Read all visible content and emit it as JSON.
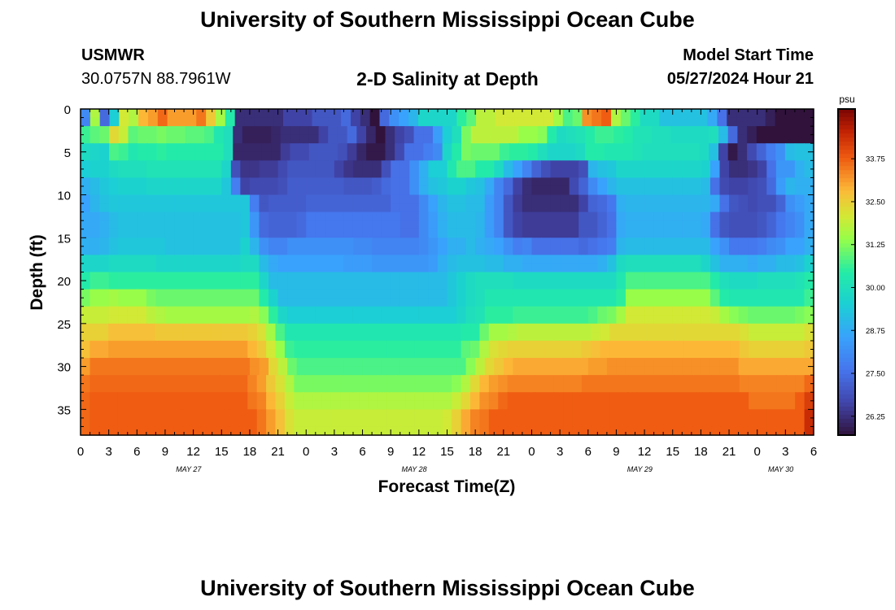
{
  "header": {
    "title": "University of Southern Mississippi Ocean Cube",
    "station_name": "USMWR",
    "station_coords": "30.0757N  88.7961W",
    "subtitle": "2-D Salinity at Depth",
    "model_start_label": "Model Start Time",
    "model_start_value": "05/27/2024 Hour 21"
  },
  "footer": {
    "title": "University of Southern Mississippi Ocean Cube"
  },
  "chart_data": {
    "type": "heatmap",
    "title": "2-D Salinity at Depth",
    "xlabel": "Forecast Time(Z)",
    "ylabel": "Depth (ft)",
    "x_range_hours": [
      0,
      78
    ],
    "y_range_ft": [
      0,
      38
    ],
    "x_tick_labels": [
      "0",
      "3",
      "6",
      "9",
      "12",
      "15",
      "18",
      "21",
      "0",
      "3",
      "6",
      "9",
      "12",
      "15",
      "18",
      "21",
      "0",
      "3",
      "6",
      "9",
      "12",
      "15",
      "18",
      "21",
      "0",
      "3",
      "6"
    ],
    "y_tick_values": [
      0,
      5,
      10,
      15,
      20,
      25,
      30,
      35
    ],
    "day_labels": [
      {
        "label": "MAY 27",
        "hour": 11.5
      },
      {
        "label": "MAY 28",
        "hour": 35.5
      },
      {
        "label": "MAY 29",
        "hour": 59.5
      },
      {
        "label": "MAY 30",
        "hour": 74.5
      }
    ],
    "colorbar": {
      "unit": "psu",
      "range": [
        25.7,
        35.2
      ],
      "tick_values": [
        26.25,
        27.5,
        28.75,
        30.0,
        31.25,
        32.5,
        33.75
      ],
      "tick_labels": [
        "26.25",
        "27.50",
        "28.75",
        "30.00",
        "31.25",
        "32.50",
        "33.75"
      ]
    },
    "grid_shape": {
      "cols": 78,
      "rows": 38
    },
    "cell_unit": "1 hour x 1 ft",
    "salinity_psu": [
      "3O.>ROXZ^ZZZ]VNE%%%%%(((+++.(%!.47:@@@@FIPPRRRRRRNHJ[]_OJFAA<<<<<8/%%%%#!!!!",
      "2N.>ROXZ^ZZZ]VNE%%%%%(((+++.(%!.47:@@@@FIPPRRRRRRNHJ[]_OJFAA<<<<<8/%%%%#!!!!",
      "GIJTQIJJKJJIIHDB%###$%%%%(++.($!%(*//6>BKPPPPPMMLEABCEGGFECCBBAAAAB;.%#!!!!!!",
      "GIJTQIJJKJJIIHDB%###$%%%%(++.($!%(*//6>BKPPPPPMMLEABCEGGFECCBBAAAAB;.%#!!!!!!",
      "A@?HGDEEFEEEEEEB$$$$$'))+++*'$\"\"%)//13@EKJJJGFFEB@@@AEEDDDCBBBBBBA<(\"%)-14;<<",
      "A@?HGDEEFEEEEEEB$$$$$'))+++*'$\"\"%)//13@EKJJJGFFEB@@@AEEDDDCBBBBBBA<(\"%)-14;<<",
      ">??ABBBCCCCCCCC@*&&'')+++++(&%%%*//49>>DHHEEA;72-*(((*:<=@@@@@@@@@?7(%%&(/559;",
      ">??ABBBCCCCCCCC@*&&'')+++++(&%%%*//49>>DHHEEA;72-*(((*:<=@@@@@@@@@?7(%%&(/559;",
      "9;=>???@@@@@@@@=1()))*,,,,,,+++,.//49<=??=<82.(%$$$$)-37:<<<<<<<<<;/)(()*.6:99",
      "9;=>???@@@@@@@@=1()))*,,,,,,+++,.//49<=??=<82.(%$$$$)-37:<<<<<<<<<;/)(()*.6:99",
      "7:<===============1+,,,,---------///37:<<;;62+'%%%%%%(-.09:::::::::8/+*)**-468",
      "7:<===============1+,,,,---------///37:<<;;62+'%%%%%%(-.09:::::::::8/+*)**-468",
      "889;<<<<<<<<<<<<<=5.---.0000000000//369;;;:62+(''''''++-/8999999998/+***+-0248",
      "889;<<<<<<<<<<<<<=5.---.0000000000//369;;;:62+(''''''++-/8999999998/+***+-0248",
      "889;<<<<<<<<<<<<<=5.---.0000000000//369;;;:62+(''''''++-/8999999998/+***+-0248",
      "99:<=====<<<<<<<<?:4224444444332222235799;987412/////./01:;;;;;;;;;74000134779",
      "99:<=====<<<<<<<<?:4224444444332222235799;987412/////./01:;;;;;;;;;74000134779",
      "@@@AAAAA@@@@@@@@@AA;8777777766655555569;<<<;;99888888889<ABBBBBBBB@<999899;;<?",
      "@@@AAAAA@@@@@@@@@AA;8777777766655555569;<<<;;99888888889<ABBBBBBBB@<999899;;<?",
      "EGGFFFFFFFFFFFFFFFF@;;;;;;;;;;;;;;;;;;;=?ABBBBAAAAAAAAAAADHHHHHHHHHEBAAABBBBCE",
      "EGGFFFFFFFFFFFFFFFF@;;;;;;;;;;;;;;;;;;;=?ABBBBAAAAAAAAAAADHHHHHHHHHEBAAABBBBCE",
      "KMMNMMMKJJJJJJJJJJJE?;;;;;;;;;;;;;;;;;;=?ABDDDDDDDDDDDDDDFMMMMMMMMMIEDDDDDDDDG",
      "KMMNMMMKJJJJJJJJJJJE?;;;;;;;;;;;;;;;;;;=?ABDDDDDDDDDDDDDDFMMMMMMMMMIEDDDDDDDDG",
      "QQQRRRRPONNNNNNNNNOLF@>>>>>>>>>>>>>>>>>>@BCFFFGGGGGGGGHJKNRRRRRRRRRQNLKJJJJJKL",
      "QQQRRRRPONNNNNNNNNOLF@>>>>>>>>>>>>>>>>>>@BCFFFGGGGGGGGHJKNRRRRRRRRRQNLKJJJJJKL",
      "UUUWWWWWVVVVVVVVVVUSNHDDDDDDDDDDDDDDDDDDDEEJNNOPPPPPPPPQRTTTTTTTTTTTTTTSQQQQQQS",
      "UUUWWWWWVVVVVVVVVVUSNHDDDDDDDDDDDDDDDDDDDEEJNNOPPPPPPPPQRTTTTTTTTTTTTTTSQQQQQQS",
      "WYYZZZZZZZZZZZZZZZXVRMGFFFFFFFFFFFFFFFFFFIJOSTUUUUUUUUVWXXXXXXXXXXXXXXXVUUUUUUV",
      "WYYZZZZZZZZZZZZZZZXVRMGFFFFFFFFFFFFFFFFFFIJOSTUUUUUUUUVWXXXXXXXXXXXXXXXVUUUUUUV",
      "Z]]]]]]]]]]]]]]]]][ZTPJHHHHHHHHHHHHHHHHHHLPTVXYYYYYYYYZZ[[[[[[[[[[[[[[YYYYYYYY",
      "Z]]]]]]]]]]]]]]]]][ZTPJHHHHHHHHHHHHHHHHHHLPTVXYYYYYYYYZZ[[[[[[[[[[[[[[YYYYYYYY",
      "]^^^^^^^^^^^^^^^^^\\ZVSOKKKKKKKKKKKKKKKKKLOTXZ[\\\\\\\\\\\\\\\\]]]]]]]]]]]]]]]]]\\\\\\\\\\\\\\^",
      "]^^^^^^^^^^^^^^^^^\\ZVSOKKKKKKKKKKKKKKKKKLOTXZ[\\\\\\\\\\\\\\\\]]]]]]]]]]]]]]]]]\\\\\\\\\\\\\\^",
      "^_________________]\\XUQOOOOOOOOOOOOOOOOOQTX[\\^__________________________]]]]]_b",
      "^_________________]\\XUQOOOOOOOOOOOOOOOOOQTX[\\^__________________________]]]]]_b",
      "^__________________]ZWSQQQQQQQQQQQQQQQQRUY\\]__________________________________d",
      "^__________________]ZWSQQQQQQQQQQQQQQQQRUY\\]__________________________________d",
      "^__________________]ZWSQQQQQQQQQQQQQQQQRUY\\]__________________________________d"
    ],
    "encoding": "each row string covers 78 hourly columns; psu = 25.7 + (charCode - 33) * 0.13"
  },
  "axis": {
    "x_title": "Forecast Time(Z)",
    "y_title": "Depth (ft)"
  }
}
